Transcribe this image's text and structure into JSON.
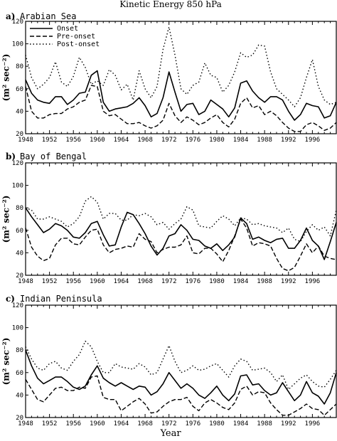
{
  "figure": {
    "title": "Kinetic Energy 850 hPa",
    "xlabel": "Year",
    "ylabel": "(m² sec⁻²)"
  },
  "legend": {
    "onset": "Onset",
    "pre_onset": "Pre-onset",
    "post_onset": "Post-onset"
  },
  "chart_data": [
    {
      "type": "line",
      "panel_label": "a)",
      "title": "Arabian Sea",
      "xlim": [
        1948,
        2000
      ],
      "ylim": [
        20,
        120
      ],
      "yticks": [
        20,
        40,
        60,
        80,
        100,
        120
      ],
      "xticks": [
        1948,
        1952,
        1956,
        1960,
        1964,
        1968,
        1972,
        1976,
        1980,
        1984,
        1988,
        1992,
        1996
      ],
      "legend_position": "top-left",
      "x": [
        1948,
        1949,
        1950,
        1951,
        1952,
        1953,
        1954,
        1955,
        1956,
        1957,
        1958,
        1959,
        1960,
        1961,
        1962,
        1963,
        1964,
        1965,
        1966,
        1967,
        1968,
        1969,
        1970,
        1971,
        1972,
        1973,
        1974,
        1975,
        1976,
        1977,
        1978,
        1979,
        1980,
        1981,
        1982,
        1983,
        1984,
        1985,
        1986,
        1987,
        1988,
        1989,
        1990,
        1991,
        1992,
        1993,
        1994,
        1995,
        1996,
        1997,
        1998,
        1999,
        2000
      ],
      "series": [
        {
          "name": "Onset",
          "style": "solid",
          "values": [
            68,
            56,
            50,
            48,
            47,
            53,
            53,
            46,
            50,
            56,
            57,
            72,
            76,
            48,
            40,
            42,
            43,
            44,
            47,
            52,
            45,
            35,
            38,
            52,
            75,
            57,
            40,
            46,
            47,
            37,
            40,
            50,
            46,
            42,
            35,
            43,
            65,
            67,
            58,
            52,
            48,
            53,
            53,
            50,
            40,
            32,
            37,
            47,
            45,
            44,
            34,
            36,
            48
          ]
        },
        {
          "name": "Pre-onset",
          "style": "dashed",
          "values": [
            62,
            40,
            34,
            34,
            37,
            38,
            38,
            42,
            44,
            48,
            50,
            63,
            62,
            40,
            36,
            37,
            33,
            29,
            29,
            30,
            27,
            25,
            27,
            32,
            47,
            36,
            30,
            35,
            32,
            28,
            30,
            34,
            37,
            30,
            26,
            33,
            47,
            52,
            43,
            45,
            37,
            40,
            36,
            30,
            25,
            22,
            22,
            28,
            30,
            27,
            23,
            25,
            30
          ]
        },
        {
          "name": "Post-onset",
          "style": "dotted",
          "values": [
            90,
            70,
            60,
            64,
            70,
            84,
            66,
            62,
            71,
            88,
            79,
            64,
            67,
            63,
            77,
            72,
            59,
            64,
            50,
            76,
            60,
            52,
            62,
            95,
            115,
            90,
            60,
            55,
            63,
            66,
            83,
            72,
            70,
            57,
            63,
            75,
            92,
            88,
            90,
            99,
            98,
            75,
            60,
            55,
            50,
            44,
            52,
            70,
            86,
            62,
            50,
            46,
            48
          ]
        }
      ]
    },
    {
      "type": "line",
      "panel_label": "b)",
      "title": "Bay of Bengal",
      "xlim": [
        1948,
        2000
      ],
      "ylim": [
        20,
        120
      ],
      "yticks": [
        20,
        40,
        60,
        80,
        100,
        120
      ],
      "xticks": [
        1948,
        1952,
        1956,
        1960,
        1964,
        1968,
        1972,
        1976,
        1980,
        1984,
        1988,
        1992,
        1996
      ],
      "x": [
        1948,
        1949,
        1950,
        1951,
        1952,
        1953,
        1954,
        1955,
        1956,
        1957,
        1958,
        1959,
        1960,
        1961,
        1962,
        1963,
        1964,
        1965,
        1966,
        1967,
        1968,
        1969,
        1970,
        1971,
        1972,
        1973,
        1974,
        1975,
        1976,
        1977,
        1978,
        1979,
        1980,
        1981,
        1982,
        1983,
        1984,
        1985,
        1986,
        1987,
        1988,
        1989,
        1990,
        1991,
        1992,
        1993,
        1994,
        1995,
        1996,
        1997,
        1998,
        1999,
        2000
      ],
      "series": [
        {
          "name": "Onset",
          "style": "solid",
          "values": [
            80,
            72,
            65,
            58,
            61,
            66,
            64,
            60,
            54,
            53,
            58,
            66,
            68,
            56,
            46,
            47,
            63,
            76,
            74,
            66,
            57,
            46,
            38,
            44,
            55,
            57,
            65,
            60,
            52,
            51,
            46,
            44,
            48,
            42,
            47,
            54,
            71,
            66,
            52,
            54,
            51,
            49,
            52,
            53,
            44,
            44,
            51,
            62,
            51,
            46,
            34,
            50,
            67
          ]
        },
        {
          "name": "Pre-onset",
          "style": "dashed",
          "values": [
            62,
            45,
            37,
            33,
            35,
            47,
            53,
            53,
            48,
            47,
            54,
            60,
            61,
            47,
            40,
            43,
            44,
            46,
            45,
            57,
            52,
            50,
            40,
            43,
            45,
            45,
            47,
            55,
            40,
            39,
            44,
            44,
            39,
            32,
            42,
            55,
            70,
            62,
            46,
            49,
            48,
            46,
            35,
            26,
            24,
            27,
            37,
            48,
            40,
            46,
            37,
            35,
            34
          ]
        },
        {
          "name": "Post-onset",
          "style": "dotted",
          "values": [
            80,
            78,
            70,
            70,
            72,
            70,
            68,
            63,
            66,
            72,
            86,
            90,
            85,
            70,
            75,
            75,
            69,
            69,
            74,
            73,
            75,
            72,
            65,
            67,
            61,
            66,
            70,
            81,
            78,
            64,
            63,
            62,
            68,
            73,
            70,
            64,
            71,
            70,
            65,
            66,
            64,
            63,
            62,
            58,
            62,
            52,
            50,
            59,
            65,
            60,
            63,
            55,
            78
          ]
        }
      ]
    },
    {
      "type": "line",
      "panel_label": "c)",
      "title": "Indian Peninsula",
      "xlim": [
        1948,
        2000
      ],
      "ylim": [
        20,
        120
      ],
      "yticks": [
        20,
        40,
        60,
        80,
        100,
        120
      ],
      "xticks": [
        1948,
        1952,
        1956,
        1960,
        1964,
        1968,
        1972,
        1976,
        1980,
        1984,
        1988,
        1992,
        1996
      ],
      "x": [
        1948,
        1949,
        1950,
        1951,
        1952,
        1953,
        1954,
        1955,
        1956,
        1957,
        1958,
        1959,
        1960,
        1961,
        1962,
        1963,
        1964,
        1965,
        1966,
        1967,
        1968,
        1969,
        1970,
        1971,
        1972,
        1973,
        1974,
        1975,
        1976,
        1977,
        1978,
        1979,
        1980,
        1981,
        1982,
        1983,
        1984,
        1985,
        1986,
        1987,
        1988,
        1989,
        1990,
        1991,
        1992,
        1993,
        1994,
        1995,
        1996,
        1997,
        1998,
        1999,
        2000
      ],
      "series": [
        {
          "name": "Onset",
          "style": "solid",
          "values": [
            80,
            66,
            55,
            50,
            53,
            56,
            56,
            52,
            47,
            45,
            48,
            58,
            66,
            55,
            51,
            48,
            51,
            48,
            45,
            48,
            47,
            40,
            43,
            50,
            60,
            53,
            46,
            50,
            46,
            40,
            37,
            42,
            48,
            40,
            35,
            41,
            57,
            58,
            49,
            50,
            44,
            40,
            42,
            51,
            43,
            35,
            40,
            52,
            42,
            39,
            32,
            42,
            60
          ]
        },
        {
          "name": "Pre-onset",
          "style": "dashed",
          "values": [
            54,
            45,
            36,
            34,
            40,
            46,
            47,
            44,
            44,
            47,
            46,
            56,
            57,
            38,
            36,
            36,
            26,
            30,
            34,
            37,
            32,
            24,
            25,
            30,
            34,
            36,
            36,
            38,
            30,
            26,
            33,
            36,
            33,
            29,
            27,
            33,
            45,
            48,
            40,
            43,
            42,
            33,
            27,
            22,
            22,
            25,
            28,
            32,
            28,
            27,
            22,
            27,
            32
          ]
        },
        {
          "name": "Post-onset",
          "style": "dotted",
          "values": [
            83,
            72,
            64,
            62,
            68,
            70,
            64,
            62,
            70,
            76,
            88,
            83,
            70,
            60,
            60,
            68,
            65,
            64,
            63,
            68,
            65,
            58,
            60,
            72,
            84,
            70,
            60,
            62,
            66,
            62,
            63,
            66,
            68,
            62,
            56,
            66,
            72,
            70,
            62,
            63,
            64,
            60,
            52,
            58,
            45,
            50,
            55,
            58,
            52,
            48,
            47,
            54,
            62
          ]
        }
      ]
    }
  ]
}
